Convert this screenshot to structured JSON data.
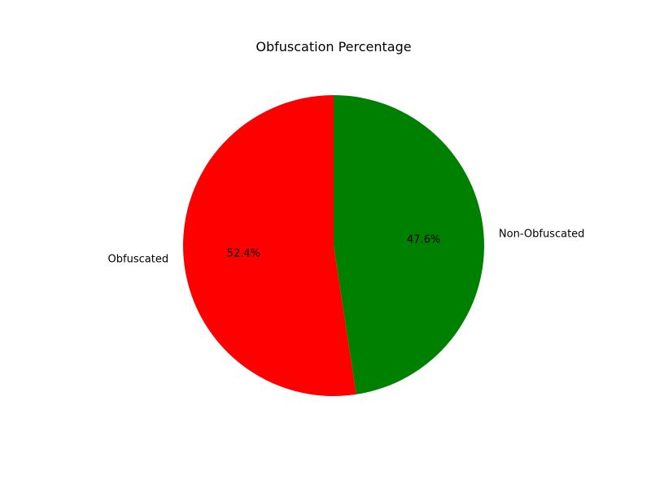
{
  "chart_data": {
    "type": "pie",
    "title": "Obfuscation Percentage",
    "start_angle_deg": 90,
    "direction": "counterclockwise",
    "slices": [
      {
        "label": "Obfuscated",
        "value": 52.4,
        "pct_label": "52.4%",
        "color": "#ff0000"
      },
      {
        "label": "Non-Obfuscated",
        "value": 47.6,
        "pct_label": "47.6%",
        "color": "#008000"
      }
    ]
  }
}
